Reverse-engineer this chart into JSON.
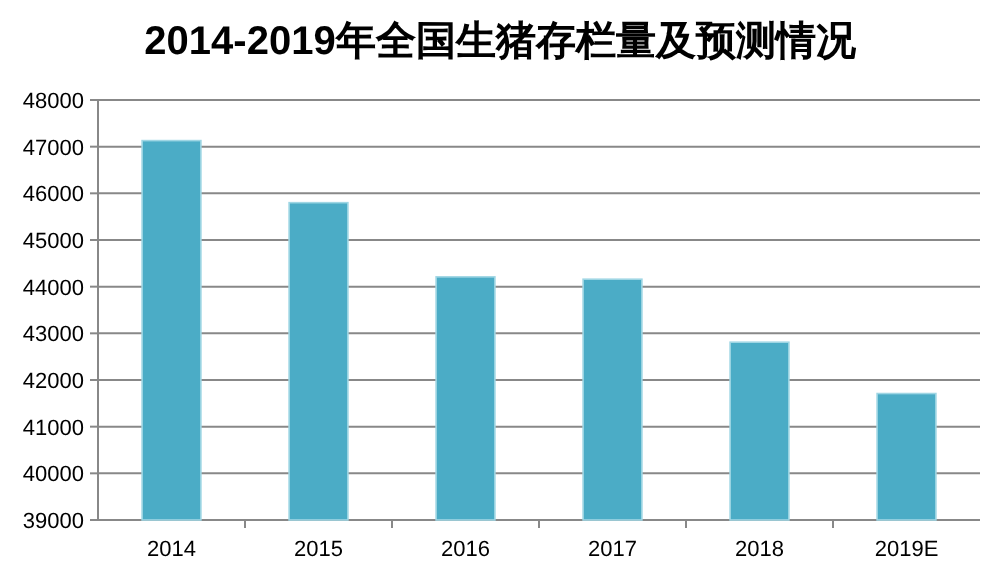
{
  "chart_data": {
    "type": "bar",
    "title": "2014-2019年全国生猪存栏量及预测情况",
    "categories": [
      "2014",
      "2015",
      "2016",
      "2017",
      "2018",
      "2019E"
    ],
    "values": [
      47130,
      45800,
      44210,
      44160,
      42810,
      41710
    ],
    "color": "#4bacc6",
    "ylim": [
      39000,
      48000
    ],
    "yticks": [
      39000,
      40000,
      41000,
      42000,
      43000,
      44000,
      45000,
      46000,
      47000,
      48000
    ],
    "grid": "y"
  }
}
